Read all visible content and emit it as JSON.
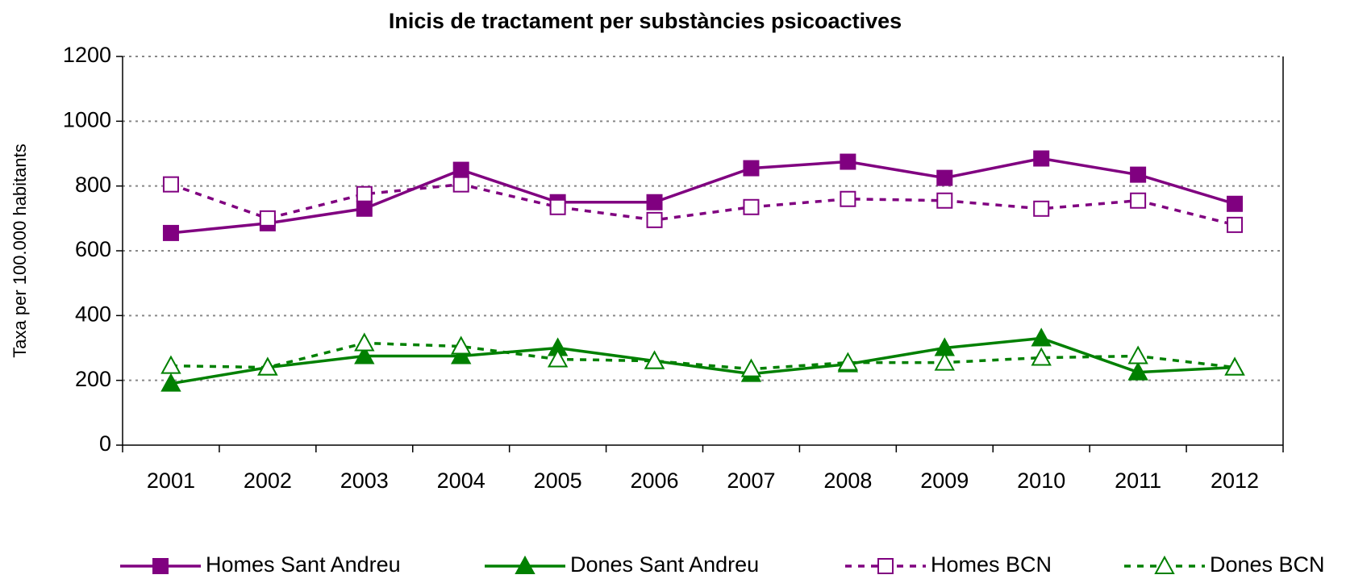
{
  "chart_data": {
    "type": "line",
    "title": "Inicis de tractament per substàncies psicoactives",
    "y_label": "Taxa per 100.000 habitants",
    "categories": [
      "2001",
      "2002",
      "2003",
      "2004",
      "2005",
      "2006",
      "2007",
      "2008",
      "2009",
      "2010",
      "2011",
      "2012"
    ],
    "ylim": [
      0,
      1200
    ],
    "yticks": [
      0,
      200,
      400,
      600,
      800,
      1000,
      1200
    ],
    "grid": true,
    "legend": "bottom",
    "series": [
      {
        "name": "Homes Sant Andreu",
        "color": "#800080",
        "dashed": false,
        "marker": "square",
        "filled": true,
        "values": [
          655,
          685,
          730,
          850,
          750,
          750,
          855,
          875,
          825,
          885,
          835,
          745
        ]
      },
      {
        "name": "Dones Sant Andreu",
        "color": "#008000",
        "dashed": false,
        "marker": "triangle",
        "filled": true,
        "values": [
          190,
          240,
          275,
          275,
          300,
          260,
          220,
          250,
          300,
          330,
          225,
          240
        ]
      },
      {
        "name": "Homes BCN",
        "color": "#800080",
        "dashed": true,
        "marker": "square",
        "filled": false,
        "values": [
          805,
          700,
          775,
          805,
          735,
          695,
          735,
          760,
          755,
          730,
          755,
          680
        ]
      },
      {
        "name": "Dones BCN",
        "color": "#008000",
        "dashed": true,
        "marker": "triangle",
        "filled": false,
        "values": [
          245,
          240,
          315,
          305,
          265,
          260,
          235,
          255,
          255,
          270,
          275,
          240
        ]
      }
    ]
  }
}
